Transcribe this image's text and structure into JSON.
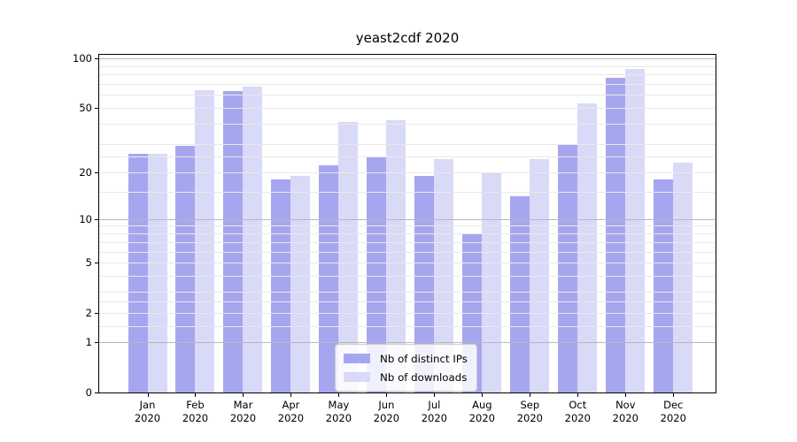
{
  "chart_data": {
    "type": "bar",
    "title": "yeast2cdf 2020",
    "year_label": "2020",
    "categories": [
      "Jan",
      "Feb",
      "Mar",
      "Apr",
      "May",
      "Jun",
      "Jul",
      "Aug",
      "Sep",
      "Oct",
      "Nov",
      "Dec"
    ],
    "series": [
      {
        "name": "Nb of distinct IPs",
        "color": "#a6a6f0",
        "values": [
          26,
          29,
          63,
          18,
          22,
          25,
          19,
          8,
          14,
          30,
          76,
          18
        ]
      },
      {
        "name": "Nb of downloads",
        "color": "#d9d9f8",
        "values": [
          26,
          64,
          67,
          19,
          41,
          42,
          24,
          20,
          24,
          53,
          86,
          23
        ]
      }
    ],
    "y_axis": {
      "scale": "log1p",
      "tick_labels": [
        100,
        50,
        20,
        10,
        5,
        2,
        1,
        0
      ],
      "major_gridlines": [
        1,
        10,
        100
      ],
      "minor_gridlines": [
        1.5,
        2,
        2.5,
        3,
        4,
        5,
        6,
        7,
        8,
        9,
        15,
        20,
        25,
        30,
        40,
        50,
        60,
        70,
        80,
        90
      ]
    },
    "xlabel": "",
    "ylabel": "",
    "grid": true,
    "legend_position": "lower center"
  },
  "colors": {
    "background": "#ffffff",
    "spine": "#000000",
    "grid_minor": "#e9e9e9",
    "grid_major": "#b8b8b8",
    "legend_border": "#cccccc",
    "text": "#000000"
  }
}
